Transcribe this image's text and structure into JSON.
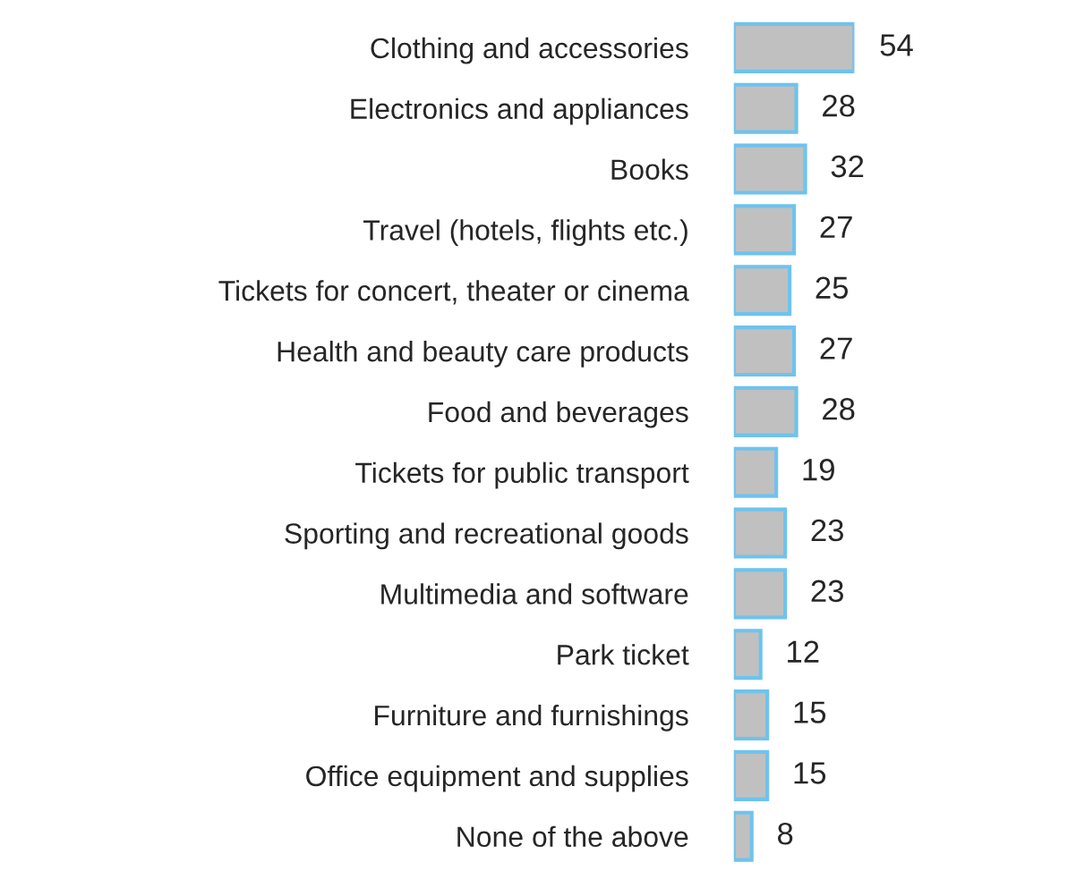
{
  "chart_data": {
    "type": "bar",
    "orientation": "horizontal",
    "categories": [
      "Clothing and accessories",
      "Electronics and appliances",
      "Books",
      "Travel (hotels, flights etc.)",
      "Tickets for concert, theater or cinema",
      "Health and beauty care products",
      "Food and beverages",
      "Tickets for public transport",
      "Sporting and recreational goods",
      "Multimedia and software",
      "Park ticket",
      "Furniture and furnishings",
      "Office equipment and supplies",
      "None of the above"
    ],
    "values": [
      54,
      28,
      32,
      27,
      25,
      27,
      28,
      19,
      23,
      23,
      12,
      15,
      15,
      8
    ],
    "color": "#c0c0c0",
    "data_labels": true,
    "tick_labels": "y",
    "grid": false,
    "legend": false
  }
}
